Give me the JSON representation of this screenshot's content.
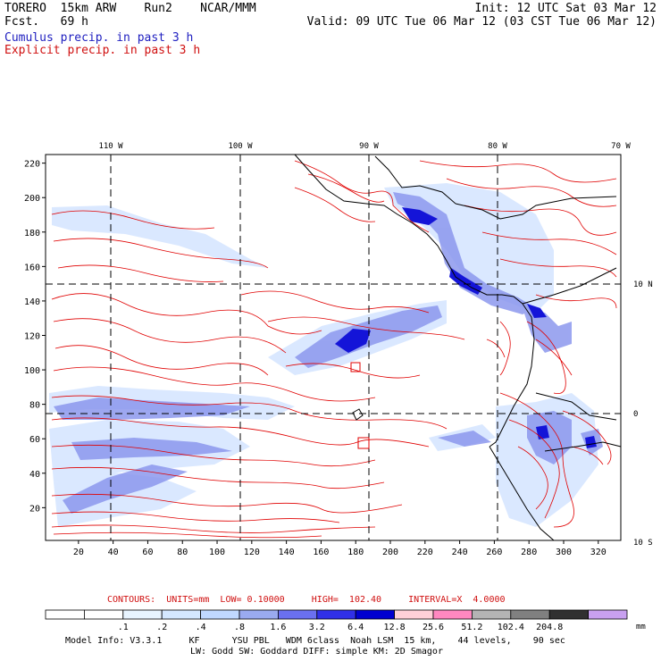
{
  "header": {
    "model": "TORERO  15km ARW    Run2    NCAR/MMM",
    "fcst": "Fcst.   69 h",
    "init": "Init: 12 UTC Sat 03 Mar 12",
    "valid": "Valid: 09 UTC Tue 06 Mar 12 (03 CST Tue 06 Mar 12)",
    "field1": "Cumulus precip. in past 3 h",
    "field2": "Explicit precip. in past 3 h"
  },
  "map": {
    "lon_labels": [
      "110 W",
      "100 W",
      "90 W",
      "80 W",
      "70 W"
    ],
    "lat_labels": [
      "10 N",
      "0",
      "10 S"
    ],
    "x_ticks": [
      20,
      40,
      60,
      80,
      100,
      120,
      140,
      160,
      180,
      200,
      220,
      240,
      260,
      280,
      300,
      320
    ],
    "y_ticks": [
      20,
      40,
      60,
      80,
      100,
      120,
      140,
      160,
      180,
      200,
      220
    ],
    "x_range": [
      1,
      333
    ],
    "y_range": [
      1,
      225
    ]
  },
  "contours_line": {
    "prefix": "CONTOURS:  UNITS=mm  LOW= 0.10000     HIGH=  102.40     INTERVAL=X  4.0000"
  },
  "colorbar": {
    "labels": [
      ".1",
      ".2",
      ".4",
      ".8",
      "1.6",
      "3.2",
      "6.4",
      "12.8",
      "25.6",
      "51.2",
      "102.4",
      "204.8"
    ],
    "unit": "mm",
    "colors": [
      "#ffffff",
      "#ffffff",
      "#e8f4ff",
      "#d4e8ff",
      "#c0d8ff",
      "#9aaaf0",
      "#6a70f0",
      "#3030e8",
      "#0000d0",
      "#ffd0d8",
      "#ff88c0",
      "#b4b4b4",
      "#808080",
      "#303030",
      "#c8a0f0"
    ]
  },
  "footer": {
    "line1": "Model Info: V3.3.1     KF      YSU PBL   WDM 6class  Noah LSM  15 km,    44 levels,    90 sec",
    "line2": "LW: Godd SW: Goddard DIFF: simple KM: 2D Smagor"
  }
}
